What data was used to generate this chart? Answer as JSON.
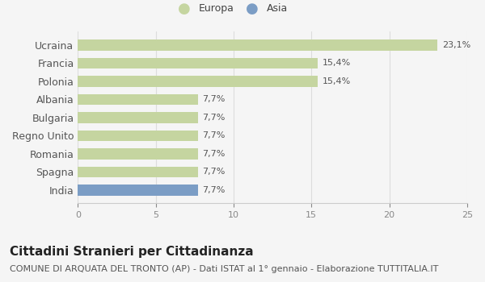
{
  "categories": [
    "India",
    "Spagna",
    "Romania",
    "Regno Unito",
    "Bulgaria",
    "Albania",
    "Polonia",
    "Francia",
    "Ucraina"
  ],
  "values": [
    7.7,
    7.7,
    7.7,
    7.7,
    7.7,
    7.7,
    15.4,
    15.4,
    23.1
  ],
  "bar_colors": [
    "#7b9dc5",
    "#c5d5a0",
    "#c5d5a0",
    "#c5d5a0",
    "#c5d5a0",
    "#c5d5a0",
    "#c5d5a0",
    "#c5d5a0",
    "#c5d5a0"
  ],
  "labels": [
    "7,7%",
    "7,7%",
    "7,7%",
    "7,7%",
    "7,7%",
    "7,7%",
    "15,4%",
    "15,4%",
    "23,1%"
  ],
  "legend_labels": [
    "Europa",
    "Asia"
  ],
  "legend_colors": [
    "#c5d5a0",
    "#7b9dc5"
  ],
  "title": "Cittadini Stranieri per Cittadinanza",
  "subtitle": "COMUNE DI ARQUATA DEL TRONTO (AP) - Dati ISTAT al 1° gennaio - Elaborazione TUTTITALIA.IT",
  "xlim": [
    0,
    25
  ],
  "xticks": [
    0,
    5,
    10,
    15,
    20,
    25
  ],
  "background_color": "#f5f5f5",
  "title_fontsize": 11,
  "subtitle_fontsize": 8,
  "label_fontsize": 8,
  "tick_fontsize": 8,
  "category_fontsize": 9
}
